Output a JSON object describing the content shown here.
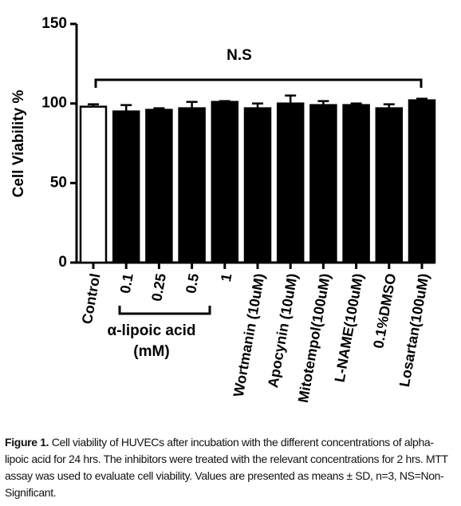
{
  "chart_data": {
    "type": "bar",
    "ylabel": "Cell Viability %",
    "categories": [
      "Control",
      "0.1",
      "0.25",
      "0.5",
      "1",
      "Wortmanin (10uM)",
      "Apocynin (10uM)",
      "Mitotempol(100uM)",
      "L-NAME(100uM)",
      "0.1%DMSO",
      "Losartan(100uM)"
    ],
    "series": [
      {
        "colors": [
          "#ffffff",
          "#000000",
          "#000000",
          "#000000",
          "#000000",
          "#000000",
          "#000000",
          "#000000",
          "#000000",
          "#000000",
          "#000000"
        ],
        "values": [
          98,
          95,
          96,
          97,
          101,
          97,
          100,
          99,
          99,
          97,
          102
        ],
        "errors": [
          1.5,
          4,
          1,
          4,
          0.5,
          3,
          5,
          2.5,
          1,
          2.5,
          1
        ]
      }
    ],
    "ylim": [
      0,
      150
    ],
    "yticks": [
      0,
      50,
      100,
      150
    ],
    "annotation": "N.S",
    "group_label_lines": [
      "α-lipoic acid",
      "(mM)"
    ]
  },
  "caption": {
    "label": "Figure 1.",
    "text": "Cell viability of HUVECs after incubation with the different concentrations of alpha-lipoic acid for 24 hrs. The inhibitors were treated with the relevant concentrations for 2 hrs. MTT assay was used to evaluate cell viability. Values are presented as means ± SD, n=3, NS=Non-Significant."
  }
}
